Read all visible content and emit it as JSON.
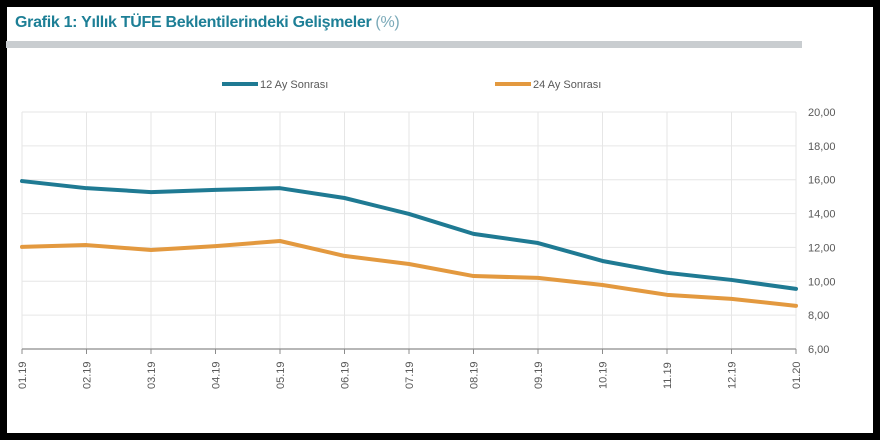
{
  "header": {
    "title": "Grafik 1: Yıllık TÜFE Beklentilerindeki Gelişmeler",
    "unit": "(%)"
  },
  "chart_data": {
    "type": "line",
    "title": "Grafik 1: Yıllık TÜFE Beklentilerindeki Gelişmeler (%)",
    "categories": [
      "01.19",
      "02.19",
      "03.19",
      "04.19",
      "05.19",
      "06.19",
      "07.19",
      "08.19",
      "09.19",
      "10.19",
      "11.19",
      "12.19",
      "01.20"
    ],
    "series": [
      {
        "name": "12 Ay Sonrası",
        "color": "#1f7a93",
        "values": [
          15.92,
          15.5,
          15.27,
          15.4,
          15.5,
          14.92,
          13.98,
          12.8,
          12.26,
          11.2,
          10.5,
          10.08,
          9.55
        ]
      },
      {
        "name": "24 Ay Sonrası",
        "color": "#e3993f",
        "values": [
          12.03,
          12.14,
          11.85,
          12.08,
          12.38,
          11.5,
          11.02,
          10.31,
          10.2,
          9.78,
          9.2,
          8.96,
          8.55
        ]
      }
    ],
    "ylim": [
      6,
      20
    ],
    "yticks": [
      "6,00",
      "8,00",
      "10,00",
      "12,00",
      "14,00",
      "16,00",
      "18,00",
      "20,00"
    ],
    "ytick_values": [
      6,
      8,
      10,
      12,
      14,
      16,
      18,
      20
    ],
    "y_axis_side": "right",
    "grid": true,
    "legend": "top"
  }
}
